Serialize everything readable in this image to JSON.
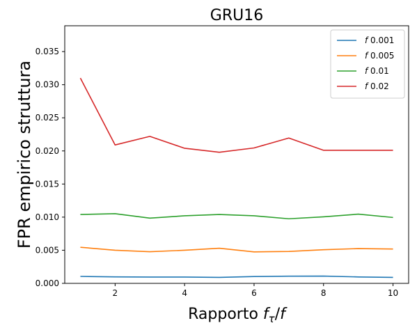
{
  "chart_data": {
    "type": "line",
    "title": "GRU16",
    "xlabel": "Rapporto fτ/f",
    "ylabel": "FPR empirico struttura",
    "xlim": [
      0.55,
      10.45
    ],
    "ylim": [
      0.0,
      0.0389
    ],
    "xticks": [
      2,
      4,
      6,
      8,
      10
    ],
    "xtick_labels": [
      "2",
      "4",
      "6",
      "8",
      "10"
    ],
    "yticks": [
      0.0,
      0.005,
      0.01,
      0.015,
      0.02,
      0.025,
      0.03,
      0.035
    ],
    "ytick_labels": [
      "0.000",
      "0.005",
      "0.010",
      "0.015",
      "0.020",
      "0.025",
      "0.030",
      "0.035"
    ],
    "grid": false,
    "legend_position": "top-right",
    "x": [
      1,
      2,
      3,
      4,
      5,
      6,
      7,
      8,
      9,
      10
    ],
    "series": [
      {
        "name": "f 0.001",
        "color": "#1f77b4",
        "values": [
          0.00105,
          0.00098,
          0.00095,
          0.00095,
          0.0009,
          0.00103,
          0.00108,
          0.0011,
          0.00097,
          0.0009
        ]
      },
      {
        "name": "f 0.005",
        "color": "#ff7f0e",
        "values": [
          0.00545,
          0.005,
          0.00478,
          0.005,
          0.0053,
          0.00475,
          0.00482,
          0.00508,
          0.00525,
          0.00518
        ]
      },
      {
        "name": "f 0.01",
        "color": "#2ca02c",
        "values": [
          0.0104,
          0.01052,
          0.00985,
          0.0102,
          0.0104,
          0.0102,
          0.00975,
          0.01005,
          0.01045,
          0.00995
        ]
      },
      {
        "name": "f 0.02",
        "color": "#d62728",
        "values": [
          0.031,
          0.0209,
          0.0222,
          0.0204,
          0.0198,
          0.02045,
          0.02195,
          0.0201,
          0.0201,
          0.0201
        ]
      }
    ]
  }
}
